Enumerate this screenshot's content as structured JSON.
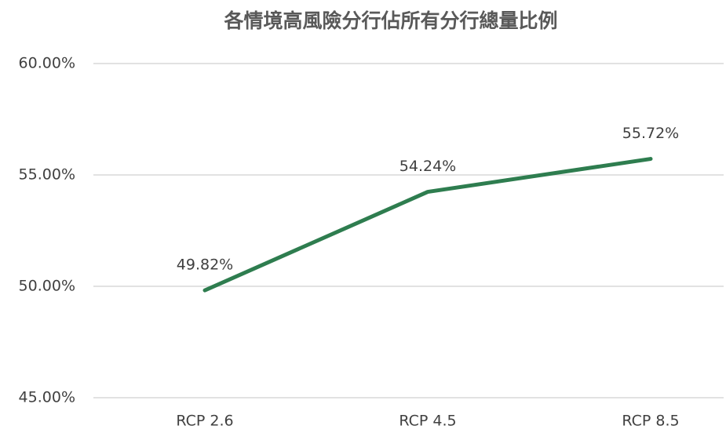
{
  "chart_data": {
    "type": "line",
    "title": "各情境高風險分行佔所有分行總量比例",
    "categories": [
      "RCP 2.6",
      "RCP 4.5",
      "RCP 8.5"
    ],
    "series": [
      {
        "name": "比例",
        "color": "#2e7d4f",
        "values": [
          49.82,
          54.24,
          55.72
        ],
        "value_labels": [
          "49.82%",
          "54.24%",
          "55.72%"
        ]
      }
    ],
    "ylim": [
      45,
      60
    ],
    "yticks": [
      {
        "value": 45,
        "label": "45.00%"
      },
      {
        "value": 50,
        "label": "50.00%"
      },
      {
        "value": 55,
        "label": "55.00%"
      },
      {
        "value": 60,
        "label": "60.00%"
      }
    ],
    "grid": true
  }
}
